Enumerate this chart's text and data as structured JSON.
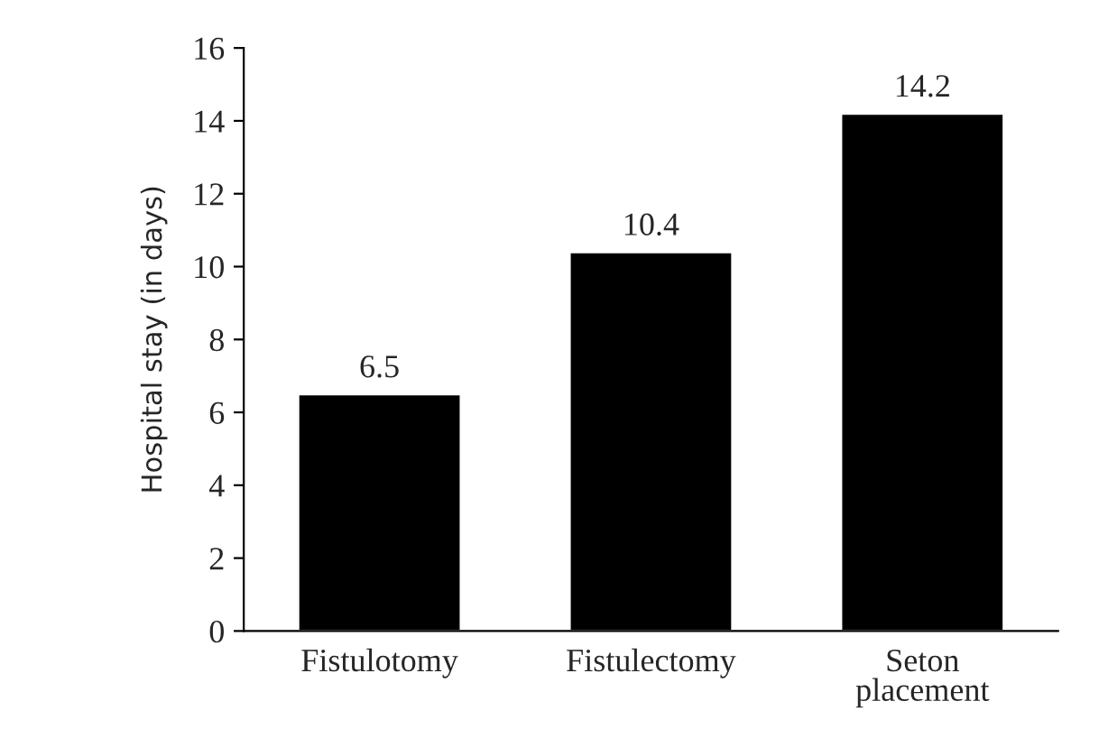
{
  "chart_data": {
    "type": "bar",
    "ylabel": "Hospital stay (in days)",
    "categories": [
      "Fistulotomy",
      "Fistulectomy",
      "Seton\nplacement"
    ],
    "values": [
      6.5,
      10.4,
      14.2
    ],
    "color": "#000000",
    "ylim": [
      0,
      16
    ],
    "yticks": [
      0,
      2,
      4,
      6,
      8,
      10,
      12,
      14,
      16
    ],
    "data_labels": true,
    "grid": false,
    "legend": false
  }
}
